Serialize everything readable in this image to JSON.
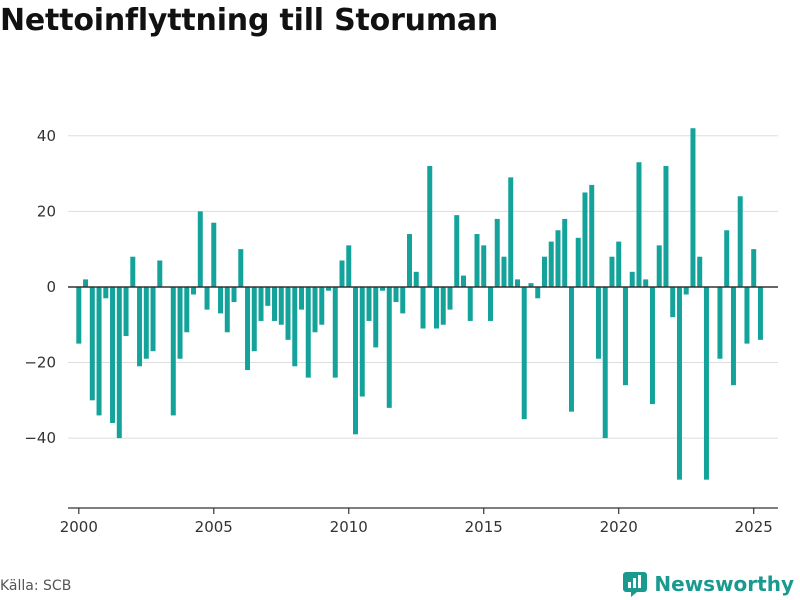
{
  "title": "Nettoinflyttning till Storuman",
  "source": "Källa: SCB",
  "brand": "Newsworthy",
  "colors": {
    "bar": "#14a39b",
    "brand": "#1a9a8f",
    "grid": "#dddddd",
    "zero_line": "#333333",
    "axis": "#333333",
    "text": "#333333"
  },
  "chart_data": {
    "type": "bar",
    "xlim": [
      1999.6,
      2025.9
    ],
    "ylim": [
      -58.5,
      50
    ],
    "x_ticks": [
      2000,
      2005,
      2010,
      2015,
      2020,
      2025
    ],
    "x_tick_labels": [
      "2000",
      "2005",
      "2010",
      "2015",
      "2020",
      "2025"
    ],
    "y_ticks": [
      -40,
      -20,
      0,
      20,
      40
    ],
    "y_tick_labels": [
      "−40",
      "−20",
      "0",
      "20",
      "40"
    ],
    "grid": true,
    "series": [
      {
        "values": [
          -15,
          2,
          -30,
          -34,
          -3,
          -36,
          -40,
          -13,
          8,
          -21,
          -19,
          -17,
          7,
          0,
          -34,
          -19,
          -12,
          -2,
          20,
          -6,
          17,
          -7,
          -12,
          -4,
          10,
          -22,
          -17,
          -9,
          -5,
          -9,
          -10,
          -14,
          -21,
          -6,
          -24,
          -12,
          -10,
          -1,
          -24,
          7,
          11,
          -39,
          -29,
          -9,
          -16,
          -1,
          -32,
          -4,
          -7,
          14,
          4,
          -11,
          32,
          -11,
          -10,
          -6,
          19,
          3,
          -9,
          14,
          11,
          -9,
          18,
          8,
          29,
          2,
          -35,
          1,
          -3,
          8,
          12,
          15,
          18,
          -33,
          13,
          25,
          27,
          -19,
          -40,
          8,
          12,
          -26,
          4,
          33,
          2,
          -31,
          11,
          32,
          -8,
          -51,
          -2,
          42,
          8,
          -51,
          0,
          -19,
          15,
          -26,
          24,
          -15,
          10,
          -14
        ]
      }
    ]
  }
}
